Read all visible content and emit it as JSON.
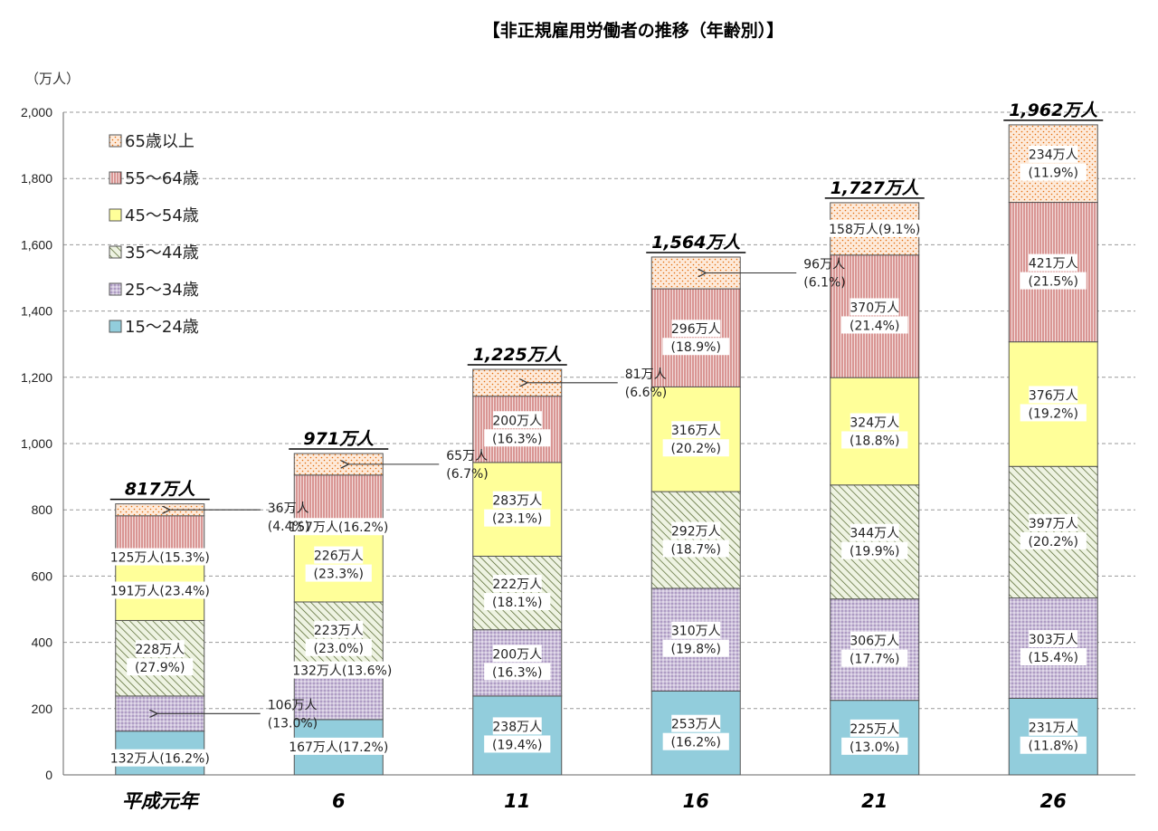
{
  "chart_data": {
    "type": "bar",
    "stacked": true,
    "title": "【非正規雇用労働者の推移（年齢別）】",
    "ylabel": "（万人）",
    "xlabel": "",
    "ylim": [
      0,
      2000
    ],
    "yticks": [
      "0",
      "200",
      "400",
      "600",
      "800",
      "1,000",
      "1,200",
      "1,400",
      "1,600",
      "1,800",
      "2,000"
    ],
    "ytick_values": [
      0,
      200,
      400,
      600,
      800,
      1000,
      1200,
      1400,
      1600,
      1800,
      2000
    ],
    "grid": true,
    "legend_position": "top-left",
    "categories": [
      "平成元年",
      "6",
      "11",
      "16",
      "21",
      "26"
    ],
    "totals": [
      "817万人",
      "971万人",
      "1,225万人",
      "1,564万人",
      "1,727万人",
      "1,962万人"
    ],
    "series": [
      {
        "name": "15〜24歳",
        "color": "#92cddc",
        "pattern": "solid",
        "values": [
          132,
          167,
          238,
          253,
          225,
          231
        ],
        "labels": [
          [
            "132万人(16.2%)"
          ],
          [
            "167万人(17.2%)"
          ],
          [
            "238万人",
            "(19.4%)"
          ],
          [
            "253万人",
            "(16.2%)"
          ],
          [
            "225万人",
            "(13.0%)"
          ],
          [
            "231万人",
            "(11.8%)"
          ]
        ]
      },
      {
        "name": "25〜34歳",
        "color": "#ccc0da",
        "pattern": "dots",
        "values": [
          106,
          132,
          200,
          310,
          306,
          303
        ],
        "labels": [
          [
            "106万人",
            "(13.0%)"
          ],
          [
            "132万人(13.6%)"
          ],
          [
            "200万人",
            "(16.3%)"
          ],
          [
            "310万人",
            "(19.8%)"
          ],
          [
            "306万人",
            "(17.7%)"
          ],
          [
            "303万人",
            "(15.4%)"
          ]
        ]
      },
      {
        "name": "35〜44歳",
        "color": "#d7e4bd",
        "pattern": "diag",
        "values": [
          228,
          223,
          222,
          292,
          344,
          397
        ],
        "labels": [
          [
            "228万人",
            "(27.9%)"
          ],
          [
            "223万人",
            "(23.0%)"
          ],
          [
            "222万人",
            "(18.1%)"
          ],
          [
            "292万人",
            "(18.7%)"
          ],
          [
            "344万人",
            "(19.9%)"
          ],
          [
            "397万人",
            "(20.2%)"
          ]
        ]
      },
      {
        "name": "45〜54歳",
        "color": "#ffff99",
        "pattern": "solid",
        "values": [
          191,
          226,
          283,
          316,
          324,
          376
        ],
        "labels": [
          [
            "191万人(23.4%)"
          ],
          [
            "226万人",
            "(23.3%)"
          ],
          [
            "283万人",
            "(23.1%)"
          ],
          [
            "316万人",
            "(20.2%)"
          ],
          [
            "324万人",
            "(18.8%)"
          ],
          [
            "376万人",
            "(19.2%)"
          ]
        ]
      },
      {
        "name": "55〜64歳",
        "color": "#e6b9b8",
        "pattern": "vlines",
        "values": [
          125,
          157,
          200,
          296,
          370,
          421
        ],
        "labels": [
          [
            "125万人(15.3%)"
          ],
          [
            "157万人(16.2%)"
          ],
          [
            "200万人",
            "(16.3%)"
          ],
          [
            "296万人",
            "(18.9%)"
          ],
          [
            "370万人",
            "(21.4%)"
          ],
          [
            "421万人",
            "(21.5%)"
          ]
        ]
      },
      {
        "name": "65歳以上",
        "color": "#fcd5b4",
        "pattern": "sparse",
        "values": [
          36,
          65,
          81,
          96,
          158,
          234
        ],
        "labels": [
          [
            "36万人",
            "(4.4%)"
          ],
          [
            "65万人",
            "(6.7%)"
          ],
          [
            "81万人",
            "(6.6%)"
          ],
          [
            "96万人",
            "(6.1%)"
          ],
          [
            "158万人(9.1%)"
          ],
          [
            "234万人",
            "(11.9%)"
          ]
        ]
      }
    ],
    "legend": [
      "65歳以上",
      "55〜64歳",
      "45〜54歳",
      "35〜44歳",
      "25〜34歳",
      "15〜24歳"
    ]
  }
}
